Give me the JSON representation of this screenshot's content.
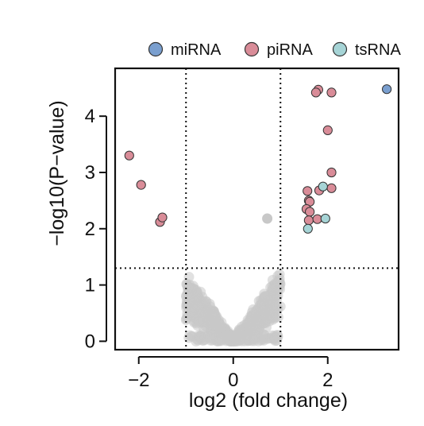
{
  "chart_data": {
    "type": "scatter",
    "title": "",
    "xlabel": "log2 (fold change)",
    "ylabel": "−log10(P−value)",
    "xlim": [
      -2.5,
      3.5
    ],
    "ylim": [
      -0.15,
      4.85
    ],
    "xticks": [
      -2,
      0,
      2
    ],
    "xtick_labels": [
      "−2",
      "0",
      "2"
    ],
    "yticks": [
      0,
      1,
      2,
      3,
      4
    ],
    "ytick_labels": [
      "0",
      "1",
      "2",
      "3",
      "4"
    ],
    "grid": false,
    "legend_position": "top",
    "thresholds": {
      "fold_change_left": -1,
      "fold_change_right": 1,
      "neg_log10_p": 1.3
    },
    "colors": {
      "miRNA": "#7a9fcf",
      "piRNA": "#d98c98",
      "tsRNA": "#a6d4d6",
      "background": "#c8c8c8",
      "outline": "#333333"
    },
    "series": [
      {
        "name": "miRNA",
        "points": [
          {
            "x": 3.25,
            "y": 4.48
          }
        ]
      },
      {
        "name": "piRNA",
        "points": [
          {
            "x": -2.2,
            "y": 3.3
          },
          {
            "x": -1.95,
            "y": 2.78
          },
          {
            "x": -1.55,
            "y": 2.12
          },
          {
            "x": -1.5,
            "y": 2.2
          },
          {
            "x": 1.8,
            "y": 4.47
          },
          {
            "x": 1.75,
            "y": 4.42
          },
          {
            "x": 2.08,
            "y": 4.42
          },
          {
            "x": 2.0,
            "y": 3.75
          },
          {
            "x": 2.08,
            "y": 3.0
          },
          {
            "x": 2.08,
            "y": 2.72
          },
          {
            "x": 1.57,
            "y": 2.67
          },
          {
            "x": 1.82,
            "y": 2.68
          },
          {
            "x": 1.6,
            "y": 2.5
          },
          {
            "x": 1.62,
            "y": 2.48
          },
          {
            "x": 1.55,
            "y": 2.35
          },
          {
            "x": 1.62,
            "y": 2.3
          },
          {
            "x": 1.6,
            "y": 2.15
          },
          {
            "x": 1.78,
            "y": 2.17
          }
        ]
      },
      {
        "name": "tsRNA",
        "points": [
          {
            "x": 1.9,
            "y": 2.75
          },
          {
            "x": 1.58,
            "y": 2.0
          },
          {
            "x": 1.95,
            "y": 2.18
          }
        ]
      },
      {
        "name": "",
        "points": [
          {
            "x": 0.72,
            "y": 2.18
          }
        ]
      }
    ]
  }
}
